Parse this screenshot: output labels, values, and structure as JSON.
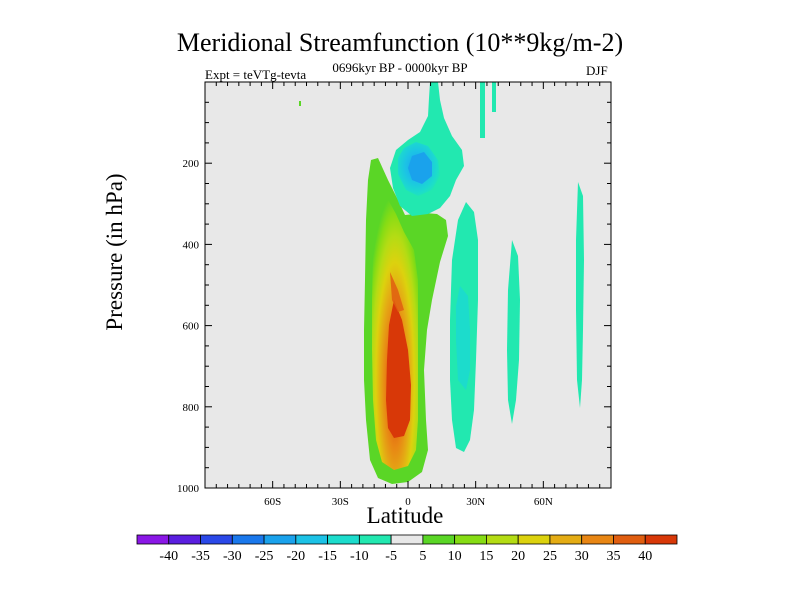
{
  "chart_data": {
    "type": "heatmap",
    "title": "Meridional Streamfunction (10**9kg/m-2)",
    "subtitle": "0696kyr BP - 0000kyr BP",
    "left_label": "Expt = teVTg-tevta",
    "right_label": "DJF",
    "xlabel": "Latitude",
    "ylabel": "Pressure (in hPa)",
    "xlim": [
      -90,
      90
    ],
    "ylim": [
      1000,
      0
    ],
    "x_ticks": [
      {
        "value": -60,
        "label": "60S"
      },
      {
        "value": -30,
        "label": "30S"
      },
      {
        "value": 0,
        "label": "0"
      },
      {
        "value": 30,
        "label": "30N"
      },
      {
        "value": 60,
        "label": "60N"
      }
    ],
    "y_ticks": [
      {
        "value": 200,
        "label": "200"
      },
      {
        "value": 400,
        "label": "400"
      },
      {
        "value": 600,
        "label": "600"
      },
      {
        "value": 800,
        "label": "800"
      },
      {
        "value": 1000,
        "label": "1000"
      }
    ],
    "colorbar": {
      "labels": [
        "-40",
        "-35",
        "-30",
        "-25",
        "-20",
        "-15",
        "-10",
        "-5",
        "5",
        "10",
        "15",
        "20",
        "25",
        "30",
        "35",
        "40"
      ],
      "colors": [
        "#8a17e6",
        "#5a1ee0",
        "#2a48e8",
        "#1a78ec",
        "#1aa2ec",
        "#1cc2e6",
        "#1cdccc",
        "#22e8b0",
        "#e8e8e8",
        "#5ad626",
        "#86dc14",
        "#b4dc14",
        "#dcd20e",
        "#e4ac14",
        "#e88614",
        "#e05e10",
        "#d83808"
      ]
    },
    "regions": [
      {
        "name": "main-positive-cell",
        "lat_center": -3,
        "p_range": [
          140,
          980
        ],
        "peak_value": 40
      },
      {
        "name": "upper-negative-cell",
        "lat_center": 3,
        "p_range": [
          0,
          320
        ],
        "peak_value": -20
      },
      {
        "name": "nh-negative-cell",
        "lat_center": 26,
        "p_range": [
          260,
          940
        ],
        "peak_value": -10
      },
      {
        "name": "nh-mid-negative",
        "lat_center": 48,
        "p_range": [
          400,
          860
        ],
        "peak_value": -5
      },
      {
        "name": "nh-high-negative",
        "lat_center": 77,
        "p_range": [
          270,
          800
        ],
        "peak_value": -5
      }
    ]
  }
}
